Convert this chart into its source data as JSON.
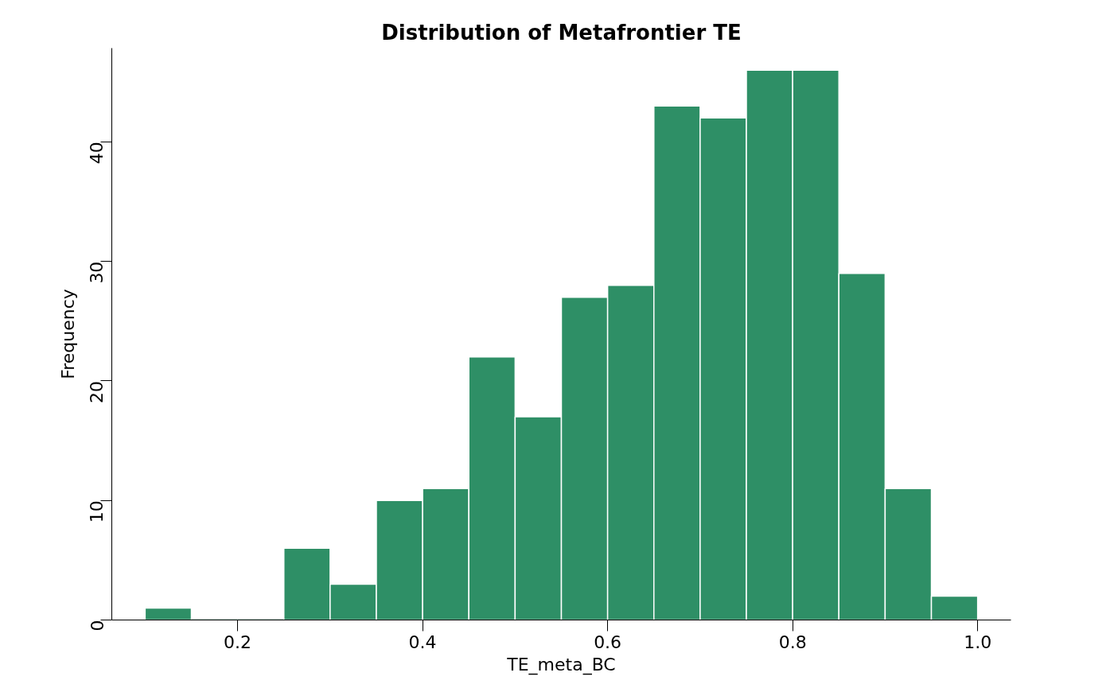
{
  "chart_data": {
    "type": "histogram",
    "title": "Distribution of Metafrontier TE",
    "xlabel": "TE_meta_BC",
    "ylabel": "Frequency",
    "bins": [
      0.1,
      0.15,
      0.2,
      0.25,
      0.3,
      0.35,
      0.4,
      0.45,
      0.5,
      0.55,
      0.6,
      0.65,
      0.7,
      0.75,
      0.8,
      0.85,
      0.9,
      0.95,
      1.0
    ],
    "values": [
      1,
      0,
      0,
      6,
      3,
      10,
      11,
      22,
      17,
      27,
      28,
      43,
      42,
      46,
      46,
      29,
      11,
      2
    ],
    "color": "#2e8f66",
    "xlim": [
      0.064,
      1.036
    ],
    "ylim": [
      0,
      47.84
    ],
    "xticks": [
      0.2,
      0.4,
      0.6,
      0.8,
      {
        "value": 1.0,
        "label": "1.0"
      }
    ],
    "yticks": [
      0,
      10,
      20,
      30,
      40
    ]
  }
}
